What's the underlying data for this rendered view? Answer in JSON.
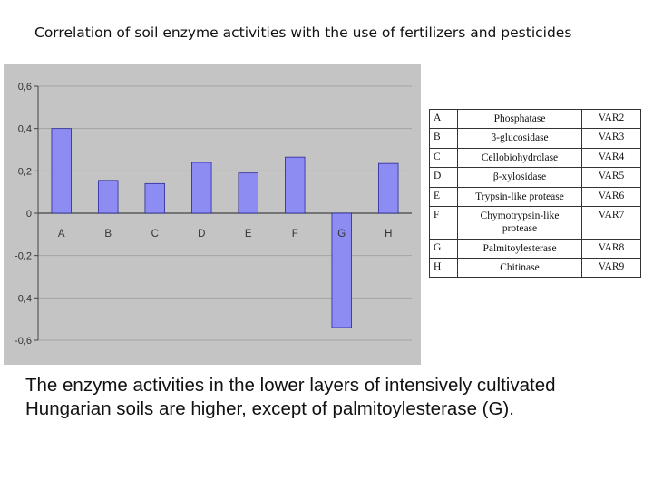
{
  "slide_title": "Correlation of soil enzyme activities with the use of fertilizers and pesticides",
  "colors": {
    "bar_fill": "#8c8cf2",
    "bar_stroke": "#2a2a9a",
    "plot_bg": "#c4c4c4",
    "axis": "#444444"
  },
  "chart_data": {
    "type": "bar",
    "categories": [
      "A",
      "B",
      "C",
      "D",
      "E",
      "F",
      "G",
      "H"
    ],
    "values": [
      0.4,
      0.155,
      0.14,
      0.24,
      0.19,
      0.265,
      -0.54,
      0.235
    ],
    "y_tick_labels": [
      "0,6",
      "0,4",
      "0,2",
      "0",
      "-0,2",
      "-0,4",
      "-0,6"
    ],
    "y_ticks": [
      0.6,
      0.4,
      0.2,
      0,
      -0.2,
      -0.4,
      -0.6
    ],
    "ylim": [
      -0.6,
      0.6
    ],
    "grid": "horizontal",
    "legend": "none"
  },
  "table": {
    "rows": [
      {
        "letter": "A",
        "name": "Phosphatase",
        "var": "VAR2"
      },
      {
        "letter": "B",
        "name": "β-glucosidase",
        "var": "VAR3"
      },
      {
        "letter": "C",
        "name": "Cellobiohydrolase",
        "var": "VAR4"
      },
      {
        "letter": "D",
        "name": "β-xylosidase",
        "var": "VAR5"
      },
      {
        "letter": "E",
        "name": "Trypsin-like protease",
        "var": "VAR6"
      },
      {
        "letter": "F",
        "name": "Chymotrypsin-like protease",
        "var": "VAR7"
      },
      {
        "letter": "G",
        "name": "Palmitoylesterase",
        "var": "VAR8"
      },
      {
        "letter": "H",
        "name": "Chitinase",
        "var": "VAR9"
      }
    ]
  },
  "caption": "The enzyme activities in the lower layers of intensively cultivated Hungarian soils are higher, except of palmitoylesterase (G)."
}
